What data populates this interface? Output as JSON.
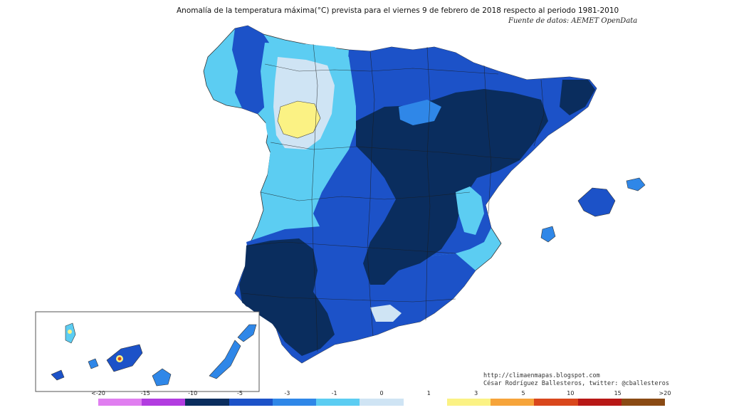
{
  "header": {
    "title": "Anomalía de la temperatura máxima(°C) prevista para el viernes 9 de febrero de 2018 respecto al periodo 1981-2010",
    "source": "Fuente de datos: AEMET OpenData"
  },
  "credits": {
    "blog": "http://climaenmapas.blogspot.com",
    "author": "César Rodríguez Ballesteros, twitter: @cballesteros"
  },
  "legend": {
    "labels": [
      "<-20",
      "-15",
      "-10",
      "-5",
      "-3",
      "-1",
      "0",
      "1",
      "3",
      "5",
      "10",
      "15",
      ">20"
    ],
    "colors": [
      "#e07ef0",
      "#b23ce0",
      "#0a2d5e",
      "#1c52c8",
      "#2f87e8",
      "#5ccdf2",
      "#cfe4f4",
      "#ffffff",
      "#fbf284",
      "#f6a43a",
      "#d9471c",
      "#b81816",
      "#8a4a14"
    ]
  },
  "palette": {
    "very_dark": "#0a2d5e",
    "dark": "#1c52c8",
    "mid": "#2f87e8",
    "light": "#5ccdf2",
    "pale": "#cfe4f4",
    "yellow": "#fbf284",
    "red": "#d9471c",
    "border": "#1a1a1a"
  }
}
